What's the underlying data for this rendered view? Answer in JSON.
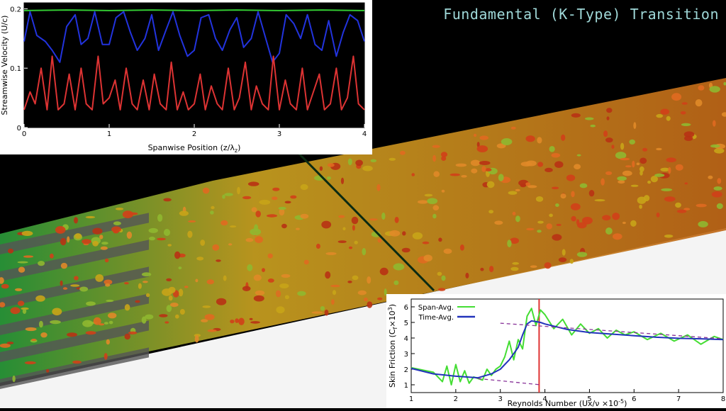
{
  "title": "Fundamental (K-Type) Transition",
  "chart_data": [
    {
      "type": "line",
      "xlabel": "Spanwise Position (z/λ",
      "xlabel_sub": "z",
      "xlabel_close": ")",
      "ylabel": "Streamwise Velocity (U/c)",
      "xlim": [
        0,
        4
      ],
      "ylim": [
        0,
        0.21
      ],
      "xticks": [
        "0",
        "1",
        "2",
        "3",
        "4"
      ],
      "yticks": [
        "0",
        "0.1",
        "0.2"
      ],
      "background": "#000000",
      "series": [
        {
          "color": "#33cc33",
          "x": [
            0,
            0.5,
            1,
            1.5,
            2,
            2.5,
            3,
            3.5,
            4
          ],
          "y": [
            0.197,
            0.198,
            0.197,
            0.198,
            0.197,
            0.198,
            0.197,
            0.198,
            0.197
          ]
        },
        {
          "color": "#2233dd",
          "x": [
            0,
            0.07,
            0.15,
            0.25,
            0.33,
            0.42,
            0.5,
            0.6,
            0.67,
            0.75,
            0.83,
            0.92,
            1,
            1.08,
            1.17,
            1.25,
            1.33,
            1.42,
            1.5,
            1.58,
            1.67,
            1.75,
            1.83,
            1.92,
            2,
            2.08,
            2.17,
            2.25,
            2.33,
            2.42,
            2.5,
            2.58,
            2.67,
            2.75,
            2.83,
            2.92,
            3,
            3.08,
            3.17,
            3.25,
            3.33,
            3.42,
            3.5,
            3.58,
            3.67,
            3.75,
            3.83,
            3.92,
            4
          ],
          "y": [
            0.145,
            0.195,
            0.155,
            0.145,
            0.13,
            0.11,
            0.17,
            0.19,
            0.14,
            0.15,
            0.195,
            0.14,
            0.14,
            0.185,
            0.195,
            0.16,
            0.13,
            0.15,
            0.19,
            0.13,
            0.165,
            0.195,
            0.155,
            0.12,
            0.13,
            0.185,
            0.19,
            0.15,
            0.13,
            0.165,
            0.185,
            0.135,
            0.15,
            0.195,
            0.155,
            0.11,
            0.125,
            0.19,
            0.175,
            0.15,
            0.19,
            0.14,
            0.13,
            0.18,
            0.12,
            0.16,
            0.19,
            0.18,
            0.145
          ]
        },
        {
          "color": "#dd3333",
          "x": [
            0,
            0.07,
            0.13,
            0.2,
            0.27,
            0.33,
            0.4,
            0.47,
            0.53,
            0.6,
            0.67,
            0.73,
            0.8,
            0.87,
            0.93,
            1,
            1.07,
            1.13,
            1.2,
            1.27,
            1.33,
            1.4,
            1.47,
            1.53,
            1.6,
            1.67,
            1.73,
            1.8,
            1.87,
            1.93,
            2,
            2.07,
            2.13,
            2.2,
            2.27,
            2.33,
            2.4,
            2.47,
            2.53,
            2.6,
            2.67,
            2.73,
            2.8,
            2.87,
            2.93,
            3,
            3.07,
            3.13,
            3.2,
            3.27,
            3.33,
            3.4,
            3.47,
            3.53,
            3.6,
            3.67,
            3.73,
            3.8,
            3.87,
            3.93,
            4
          ],
          "y": [
            0.03,
            0.06,
            0.04,
            0.1,
            0.03,
            0.12,
            0.03,
            0.04,
            0.09,
            0.03,
            0.1,
            0.04,
            0.03,
            0.12,
            0.04,
            0.05,
            0.08,
            0.03,
            0.1,
            0.04,
            0.03,
            0.08,
            0.03,
            0.09,
            0.04,
            0.03,
            0.11,
            0.03,
            0.06,
            0.03,
            0.04,
            0.09,
            0.03,
            0.07,
            0.04,
            0.03,
            0.1,
            0.03,
            0.05,
            0.11,
            0.03,
            0.07,
            0.04,
            0.03,
            0.12,
            0.03,
            0.08,
            0.04,
            0.03,
            0.1,
            0.03,
            0.06,
            0.09,
            0.03,
            0.04,
            0.1,
            0.03,
            0.05,
            0.12,
            0.04,
            0.03
          ]
        }
      ]
    },
    {
      "type": "line",
      "xlabel": "Reynolds Number (Ux/ν ×10",
      "xlabel_sup": "-5",
      "xlabel_close": ")",
      "ylabel": "Skin Friction (C",
      "ylabel_sub": "f",
      "ylabel_mid": "×10",
      "ylabel_sup": "3",
      "ylabel_close": ")",
      "xlim": [
        1,
        8
      ],
      "ylim": [
        0.5,
        6.5
      ],
      "xticks": [
        "1",
        "2",
        "3",
        "4",
        "5",
        "6",
        "7",
        "8"
      ],
      "yticks": [
        "1",
        "2",
        "3",
        "4",
        "5",
        "6"
      ],
      "vline": {
        "x": 3.87,
        "color": "#e03333"
      },
      "series": [
        {
          "name": "Span-Avg.",
          "color": "#44dd33",
          "x": [
            1,
            1.5,
            1.7,
            1.8,
            1.9,
            2,
            2.1,
            2.2,
            2.3,
            2.4,
            2.5,
            2.6,
            2.7,
            2.8,
            2.9,
            3,
            3.1,
            3.2,
            3.3,
            3.4,
            3.5,
            3.6,
            3.7,
            3.8,
            3.9,
            4,
            4.2,
            4.4,
            4.6,
            4.8,
            5,
            5.2,
            5.4,
            5.6,
            5.8,
            6,
            6.3,
            6.6,
            6.9,
            7.2,
            7.5,
            7.8,
            8
          ],
          "y": [
            2.1,
            1.8,
            1.2,
            2.2,
            1.0,
            2.3,
            1.2,
            1.9,
            1.1,
            1.5,
            1.4,
            1.3,
            2.0,
            1.6,
            2.0,
            2.2,
            2.8,
            3.8,
            2.6,
            3.9,
            3.3,
            5.4,
            5.9,
            4.8,
            5.8,
            5.5,
            4.6,
            5.2,
            4.2,
            4.9,
            4.3,
            4.6,
            4.0,
            4.5,
            4.2,
            4.4,
            3.9,
            4.3,
            3.8,
            4.2,
            3.6,
            4.1,
            3.9
          ]
        },
        {
          "name": "Time-Avg.",
          "color": "#2233bb",
          "x": [
            1,
            1.5,
            2,
            2.5,
            2.8,
            3,
            3.2,
            3.4,
            3.5,
            3.6,
            3.7,
            3.8,
            3.9,
            4,
            4.5,
            5,
            5.5,
            6,
            6.5,
            7,
            7.5,
            8
          ],
          "y": [
            2.05,
            1.7,
            1.55,
            1.45,
            1.7,
            2.0,
            2.6,
            3.4,
            4.2,
            4.9,
            5.1,
            5.05,
            5.0,
            4.9,
            4.55,
            4.35,
            4.25,
            4.15,
            4.05,
            3.98,
            3.95,
            3.9
          ]
        },
        {
          "color": "#883399",
          "dashed": true,
          "x": [
            2.5,
            3.9
          ],
          "y": [
            1.4,
            1.0
          ]
        },
        {
          "color": "#883399",
          "dashed": true,
          "x": [
            3,
            8
          ],
          "y": [
            4.95,
            3.95
          ]
        }
      ],
      "legend": "top-left"
    }
  ]
}
